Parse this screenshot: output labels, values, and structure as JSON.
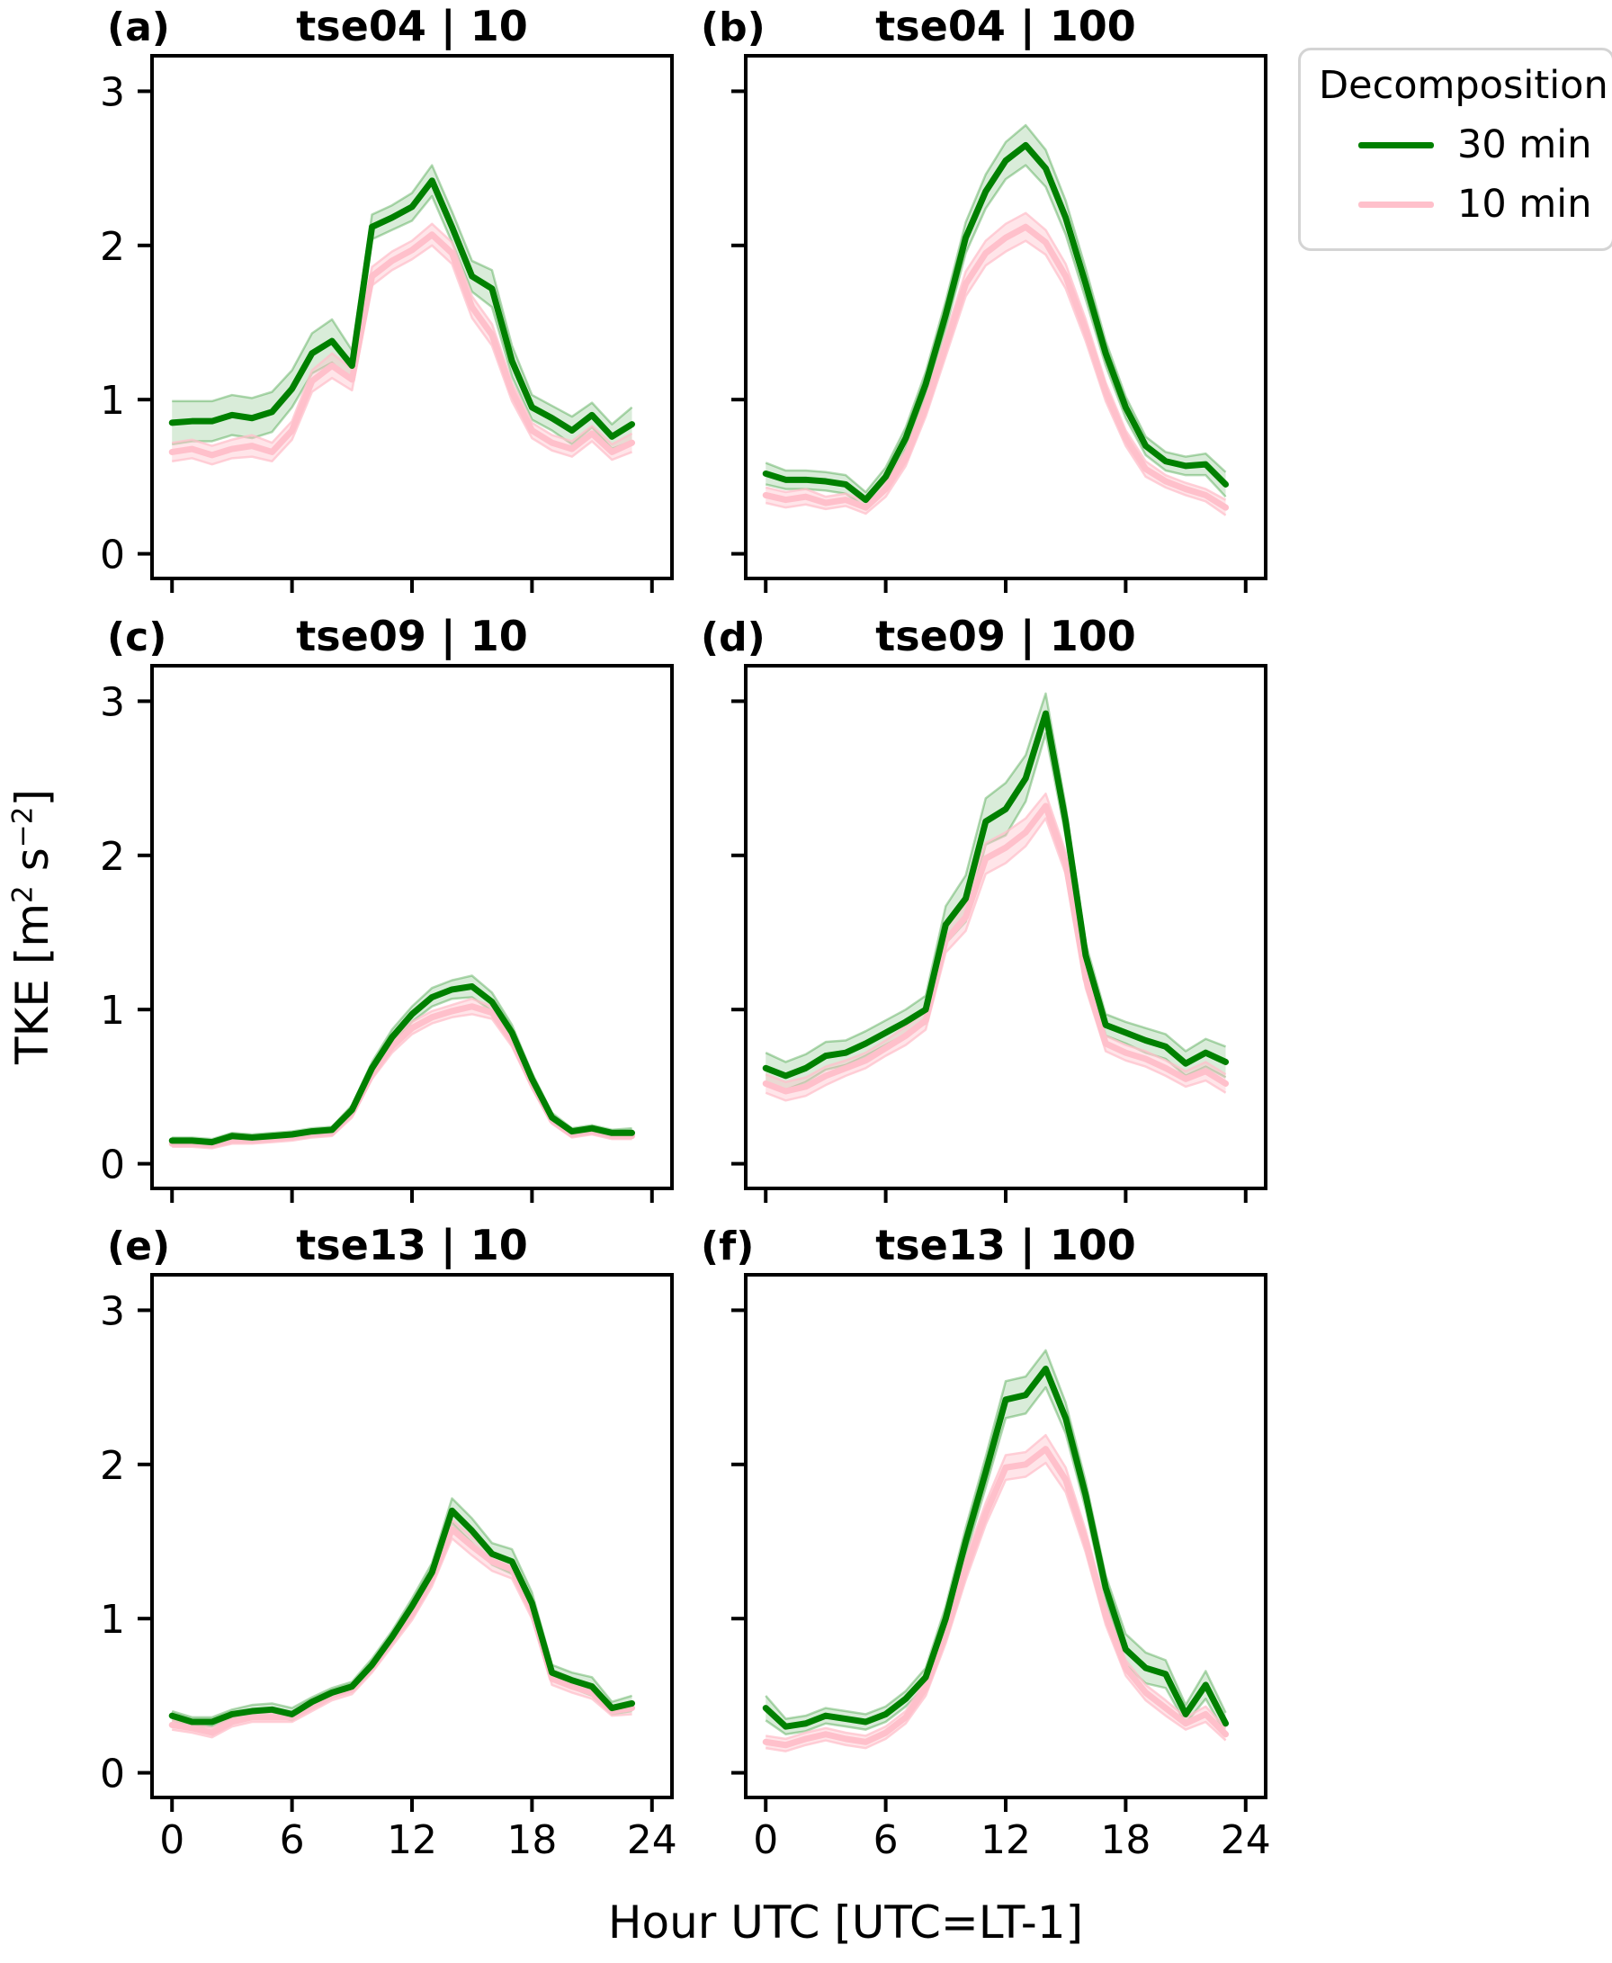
{
  "figure": {
    "xlabel": "Hour UTC [UTC=LT-1]",
    "ylabel_parts": {
      "pre": "TKE [m",
      "sup1": "2",
      "mid": " s",
      "sup2": "−2",
      "post": "]"
    },
    "background": "#ffffff",
    "text_color": "#000000"
  },
  "legend": {
    "title": "Decomposition",
    "items": [
      {
        "label": "30 min",
        "color": "#008000"
      },
      {
        "label": "10 min",
        "color": "#ffc0cb"
      }
    ]
  },
  "chart_data": [
    {
      "type": "line",
      "panel_label": "(a)",
      "title": "tse04 | 10",
      "x_hours": [
        0,
        1,
        2,
        3,
        4,
        5,
        6,
        7,
        8,
        9,
        10,
        11,
        12,
        13,
        14,
        15,
        16,
        17,
        18,
        19,
        20,
        21,
        22,
        23
      ],
      "xlim": [
        -1,
        25
      ],
      "ylim": [
        -0.16,
        3.23
      ],
      "x_ticks": [
        0,
        6,
        12,
        18,
        24
      ],
      "y_ticks": [
        0,
        1,
        2,
        3
      ],
      "show_x_tick_labels": false,
      "show_y_tick_labels": true,
      "grid": false,
      "series": [
        {
          "name": "30 min",
          "color": "#008000",
          "band_fill": "rgba(0,128,0,0.15)",
          "band_edge": "rgba(0,128,0,0.30)",
          "values": [
            0.85,
            0.86,
            0.86,
            0.9,
            0.88,
            0.92,
            1.07,
            1.3,
            1.38,
            1.22,
            2.12,
            2.18,
            2.25,
            2.42,
            2.12,
            1.8,
            1.72,
            1.25,
            0.95,
            0.88,
            0.8,
            0.9,
            0.76,
            0.84
          ],
          "band_halfwidth": [
            0.14,
            0.13,
            0.13,
            0.13,
            0.13,
            0.13,
            0.12,
            0.13,
            0.14,
            0.1,
            0.08,
            0.08,
            0.09,
            0.1,
            0.1,
            0.1,
            0.12,
            0.1,
            0.08,
            0.08,
            0.09,
            0.08,
            0.08,
            0.11
          ]
        },
        {
          "name": "10 min",
          "color": "#ffc0cb",
          "band_fill": "rgba(255,192,203,0.42)",
          "band_edge": "rgba(255,192,203,0.75)",
          "values": [
            0.66,
            0.68,
            0.64,
            0.68,
            0.7,
            0.66,
            0.8,
            1.12,
            1.22,
            1.13,
            1.8,
            1.9,
            1.97,
            2.07,
            1.95,
            1.6,
            1.42,
            1.05,
            0.8,
            0.72,
            0.68,
            0.78,
            0.66,
            0.72
          ],
          "band_halfwidth": [
            0.06,
            0.06,
            0.06,
            0.06,
            0.07,
            0.06,
            0.06,
            0.07,
            0.08,
            0.07,
            0.06,
            0.06,
            0.06,
            0.07,
            0.07,
            0.07,
            0.07,
            0.06,
            0.05,
            0.05,
            0.05,
            0.05,
            0.05,
            0.06
          ]
        }
      ]
    },
    {
      "type": "line",
      "panel_label": "(b)",
      "title": "tse04 | 100",
      "x_hours": [
        0,
        1,
        2,
        3,
        4,
        5,
        6,
        7,
        8,
        9,
        10,
        11,
        12,
        13,
        14,
        15,
        16,
        17,
        18,
        19,
        20,
        21,
        22,
        23
      ],
      "xlim": [
        -1,
        25
      ],
      "ylim": [
        -0.16,
        3.23
      ],
      "x_ticks": [
        0,
        6,
        12,
        18,
        24
      ],
      "y_ticks": [
        0,
        1,
        2,
        3
      ],
      "show_x_tick_labels": false,
      "show_y_tick_labels": false,
      "grid": false,
      "series": [
        {
          "name": "30 min",
          "color": "#008000",
          "band_fill": "rgba(0,128,0,0.15)",
          "band_edge": "rgba(0,128,0,0.30)",
          "values": [
            0.52,
            0.48,
            0.48,
            0.47,
            0.45,
            0.35,
            0.5,
            0.75,
            1.1,
            1.55,
            2.05,
            2.35,
            2.55,
            2.65,
            2.5,
            2.18,
            1.75,
            1.3,
            0.95,
            0.7,
            0.6,
            0.57,
            0.58,
            0.45
          ],
          "band_halfwidth": [
            0.07,
            0.06,
            0.06,
            0.06,
            0.06,
            0.05,
            0.06,
            0.07,
            0.08,
            0.09,
            0.1,
            0.11,
            0.12,
            0.13,
            0.12,
            0.11,
            0.1,
            0.08,
            0.07,
            0.06,
            0.06,
            0.06,
            0.07,
            0.08
          ]
        },
        {
          "name": "10 min",
          "color": "#ffc0cb",
          "band_fill": "rgba(255,192,203,0.42)",
          "band_edge": "rgba(255,192,203,0.75)",
          "values": [
            0.38,
            0.35,
            0.37,
            0.33,
            0.35,
            0.3,
            0.42,
            0.62,
            0.95,
            1.35,
            1.75,
            1.95,
            2.05,
            2.12,
            2.02,
            1.8,
            1.45,
            1.05,
            0.75,
            0.55,
            0.47,
            0.42,
            0.38,
            0.3
          ],
          "band_halfwidth": [
            0.05,
            0.05,
            0.05,
            0.04,
            0.04,
            0.04,
            0.05,
            0.05,
            0.06,
            0.07,
            0.08,
            0.08,
            0.09,
            0.09,
            0.08,
            0.08,
            0.07,
            0.06,
            0.05,
            0.05,
            0.04,
            0.04,
            0.04,
            0.05
          ]
        }
      ]
    },
    {
      "type": "line",
      "panel_label": "(c)",
      "title": "tse09 | 10",
      "x_hours": [
        0,
        1,
        2,
        3,
        4,
        5,
        6,
        7,
        8,
        9,
        10,
        11,
        12,
        13,
        14,
        15,
        16,
        17,
        18,
        19,
        20,
        21,
        22,
        23
      ],
      "xlim": [
        -1,
        25
      ],
      "ylim": [
        -0.16,
        3.23
      ],
      "x_ticks": [
        0,
        6,
        12,
        18,
        24
      ],
      "y_ticks": [
        0,
        1,
        2,
        3
      ],
      "show_x_tick_labels": false,
      "show_y_tick_labels": true,
      "grid": false,
      "series": [
        {
          "name": "30 min",
          "color": "#008000",
          "band_fill": "rgba(0,128,0,0.15)",
          "band_edge": "rgba(0,128,0,0.30)",
          "values": [
            0.15,
            0.15,
            0.14,
            0.18,
            0.17,
            0.18,
            0.19,
            0.21,
            0.22,
            0.35,
            0.62,
            0.82,
            0.97,
            1.08,
            1.13,
            1.15,
            1.05,
            0.85,
            0.55,
            0.3,
            0.21,
            0.23,
            0.2,
            0.2
          ],
          "band_halfwidth": [
            0.02,
            0.02,
            0.02,
            0.02,
            0.02,
            0.02,
            0.02,
            0.02,
            0.02,
            0.03,
            0.04,
            0.05,
            0.05,
            0.06,
            0.06,
            0.07,
            0.06,
            0.05,
            0.04,
            0.03,
            0.02,
            0.02,
            0.02,
            0.03
          ]
        },
        {
          "name": "10 min",
          "color": "#ffc0cb",
          "band_fill": "rgba(255,192,203,0.42)",
          "band_edge": "rgba(255,192,203,0.75)",
          "values": [
            0.13,
            0.13,
            0.12,
            0.15,
            0.15,
            0.16,
            0.17,
            0.19,
            0.2,
            0.33,
            0.58,
            0.76,
            0.88,
            0.95,
            0.99,
            1.02,
            0.98,
            0.8,
            0.52,
            0.28,
            0.19,
            0.21,
            0.18,
            0.18
          ],
          "band_halfwidth": [
            0.02,
            0.02,
            0.02,
            0.02,
            0.02,
            0.02,
            0.02,
            0.02,
            0.02,
            0.03,
            0.03,
            0.04,
            0.04,
            0.04,
            0.04,
            0.05,
            0.04,
            0.04,
            0.03,
            0.02,
            0.02,
            0.02,
            0.02,
            0.02
          ]
        }
      ]
    },
    {
      "type": "line",
      "panel_label": "(d)",
      "title": "tse09 | 100",
      "x_hours": [
        0,
        1,
        2,
        3,
        4,
        5,
        6,
        7,
        8,
        9,
        10,
        11,
        12,
        13,
        14,
        15,
        16,
        17,
        18,
        19,
        20,
        21,
        22,
        23
      ],
      "xlim": [
        -1,
        25
      ],
      "ylim": [
        -0.16,
        3.23
      ],
      "x_ticks": [
        0,
        6,
        12,
        18,
        24
      ],
      "y_ticks": [
        0,
        1,
        2,
        3
      ],
      "show_x_tick_labels": false,
      "show_y_tick_labels": false,
      "grid": false,
      "series": [
        {
          "name": "30 min",
          "color": "#008000",
          "band_fill": "rgba(0,128,0,0.15)",
          "band_edge": "rgba(0,128,0,0.30)",
          "values": [
            0.62,
            0.57,
            0.62,
            0.7,
            0.72,
            0.78,
            0.85,
            0.92,
            1.0,
            1.55,
            1.72,
            2.22,
            2.3,
            2.5,
            2.92,
            2.22,
            1.35,
            0.9,
            0.85,
            0.8,
            0.76,
            0.65,
            0.72,
            0.66
          ],
          "band_halfwidth": [
            0.1,
            0.09,
            0.09,
            0.09,
            0.08,
            0.08,
            0.08,
            0.08,
            0.09,
            0.12,
            0.15,
            0.15,
            0.17,
            0.15,
            0.13,
            0.1,
            0.08,
            0.07,
            0.07,
            0.08,
            0.08,
            0.08,
            0.09,
            0.1
          ]
        },
        {
          "name": "10 min",
          "color": "#ffc0cb",
          "band_fill": "rgba(255,192,203,0.42)",
          "band_edge": "rgba(255,192,203,0.75)",
          "values": [
            0.52,
            0.47,
            0.5,
            0.57,
            0.62,
            0.67,
            0.75,
            0.83,
            0.93,
            1.45,
            1.6,
            1.98,
            2.05,
            2.15,
            2.32,
            1.95,
            1.2,
            0.78,
            0.72,
            0.68,
            0.62,
            0.55,
            0.6,
            0.52
          ],
          "band_halfwidth": [
            0.06,
            0.06,
            0.06,
            0.06,
            0.05,
            0.05,
            0.05,
            0.06,
            0.06,
            0.08,
            0.09,
            0.1,
            0.1,
            0.09,
            0.08,
            0.07,
            0.06,
            0.05,
            0.05,
            0.05,
            0.05,
            0.05,
            0.06,
            0.06
          ]
        }
      ]
    },
    {
      "type": "line",
      "panel_label": "(e)",
      "title": "tse13 | 10",
      "x_hours": [
        0,
        1,
        2,
        3,
        4,
        5,
        6,
        7,
        8,
        9,
        10,
        11,
        12,
        13,
        14,
        15,
        16,
        17,
        18,
        19,
        20,
        21,
        22,
        23
      ],
      "xlim": [
        -1,
        25
      ],
      "ylim": [
        -0.16,
        3.23
      ],
      "x_ticks": [
        0,
        6,
        12,
        18,
        24
      ],
      "y_ticks": [
        0,
        1,
        2,
        3
      ],
      "show_x_tick_labels": true,
      "show_y_tick_labels": true,
      "grid": false,
      "series": [
        {
          "name": "30 min",
          "color": "#008000",
          "band_fill": "rgba(0,128,0,0.15)",
          "band_edge": "rgba(0,128,0,0.30)",
          "values": [
            0.37,
            0.33,
            0.33,
            0.38,
            0.4,
            0.41,
            0.38,
            0.46,
            0.52,
            0.56,
            0.7,
            0.88,
            1.08,
            1.3,
            1.7,
            1.57,
            1.42,
            1.37,
            1.1,
            0.65,
            0.6,
            0.56,
            0.42,
            0.45
          ],
          "band_halfwidth": [
            0.03,
            0.03,
            0.03,
            0.03,
            0.04,
            0.04,
            0.04,
            0.03,
            0.03,
            0.03,
            0.04,
            0.04,
            0.05,
            0.06,
            0.08,
            0.08,
            0.07,
            0.08,
            0.07,
            0.05,
            0.05,
            0.06,
            0.04,
            0.05
          ]
        },
        {
          "name": "10 min",
          "color": "#ffc0cb",
          "band_fill": "rgba(255,192,203,0.42)",
          "band_edge": "rgba(255,192,203,0.75)",
          "values": [
            0.31,
            0.29,
            0.26,
            0.33,
            0.36,
            0.36,
            0.36,
            0.43,
            0.5,
            0.54,
            0.68,
            0.86,
            1.03,
            1.26,
            1.58,
            1.47,
            1.37,
            1.32,
            1.05,
            0.61,
            0.56,
            0.52,
            0.4,
            0.42
          ],
          "band_halfwidth": [
            0.03,
            0.03,
            0.03,
            0.03,
            0.03,
            0.03,
            0.03,
            0.03,
            0.03,
            0.03,
            0.03,
            0.04,
            0.04,
            0.05,
            0.06,
            0.06,
            0.06,
            0.06,
            0.05,
            0.04,
            0.04,
            0.04,
            0.03,
            0.04
          ]
        }
      ]
    },
    {
      "type": "line",
      "panel_label": "(f)",
      "title": "tse13 | 100",
      "x_hours": [
        0,
        1,
        2,
        3,
        4,
        5,
        6,
        7,
        8,
        9,
        10,
        11,
        12,
        13,
        14,
        15,
        16,
        17,
        18,
        19,
        20,
        21,
        22,
        23
      ],
      "xlim": [
        -1,
        25
      ],
      "ylim": [
        -0.16,
        3.23
      ],
      "x_ticks": [
        0,
        6,
        12,
        18,
        24
      ],
      "y_ticks": [
        0,
        1,
        2,
        3
      ],
      "show_x_tick_labels": true,
      "show_y_tick_labels": false,
      "grid": false,
      "series": [
        {
          "name": "30 min",
          "color": "#008000",
          "band_fill": "rgba(0,128,0,0.15)",
          "band_edge": "rgba(0,128,0,0.30)",
          "values": [
            0.42,
            0.3,
            0.32,
            0.37,
            0.35,
            0.33,
            0.38,
            0.48,
            0.62,
            1.0,
            1.5,
            1.95,
            2.42,
            2.45,
            2.62,
            2.3,
            1.8,
            1.2,
            0.8,
            0.68,
            0.64,
            0.38,
            0.57,
            0.32
          ],
          "band_halfwidth": [
            0.08,
            0.05,
            0.05,
            0.05,
            0.05,
            0.05,
            0.05,
            0.05,
            0.06,
            0.08,
            0.09,
            0.1,
            0.12,
            0.12,
            0.12,
            0.1,
            0.09,
            0.08,
            0.1,
            0.1,
            0.09,
            0.06,
            0.09,
            0.07
          ]
        },
        {
          "name": "10 min",
          "color": "#ffc0cb",
          "band_fill": "rgba(255,192,203,0.42)",
          "band_edge": "rgba(255,192,203,0.75)",
          "values": [
            0.2,
            0.18,
            0.22,
            0.25,
            0.22,
            0.2,
            0.26,
            0.36,
            0.55,
            0.9,
            1.32,
            1.68,
            1.98,
            2.0,
            2.1,
            1.9,
            1.5,
            1.02,
            0.68,
            0.52,
            0.42,
            0.32,
            0.38,
            0.25
          ],
          "band_halfwidth": [
            0.04,
            0.04,
            0.04,
            0.04,
            0.04,
            0.04,
            0.04,
            0.04,
            0.05,
            0.06,
            0.07,
            0.07,
            0.08,
            0.08,
            0.09,
            0.08,
            0.07,
            0.06,
            0.05,
            0.05,
            0.05,
            0.04,
            0.05,
            0.04
          ]
        }
      ]
    }
  ]
}
